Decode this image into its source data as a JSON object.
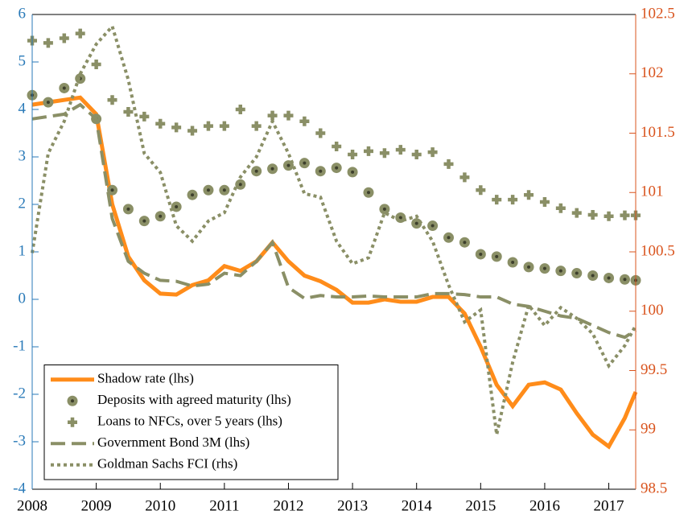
{
  "chart_data": {
    "type": "line",
    "x": [
      2008,
      2008.25,
      2008.5,
      2008.75,
      2009,
      2009.25,
      2009.5,
      2009.75,
      2010,
      2010.25,
      2010.5,
      2010.75,
      2011,
      2011.25,
      2011.5,
      2011.75,
      2012,
      2012.25,
      2012.5,
      2012.75,
      2013,
      2013.25,
      2013.5,
      2013.75,
      2014,
      2014.25,
      2014.5,
      2014.75,
      2015,
      2015.25,
      2015.5,
      2015.75,
      2016,
      2016.25,
      2016.5,
      2016.75,
      2017,
      2017.25,
      2017.42
    ],
    "xlim": [
      2008,
      2017.42
    ],
    "xticks": [
      2008,
      2009,
      2010,
      2011,
      2012,
      2013,
      2014,
      2015,
      2016,
      2017
    ],
    "ylim": [
      -4,
      6
    ],
    "yticks": [
      -4,
      -3,
      -2,
      -1,
      0,
      1,
      2,
      3,
      4,
      5,
      6
    ],
    "y2lim": [
      98.5,
      102.5
    ],
    "y2ticks": [
      98.5,
      99,
      99.5,
      100,
      100.5,
      101,
      101.5,
      102,
      102.5
    ],
    "left_axis_color": "#2a7ab8",
    "right_axis_color": "#d9541e",
    "legend": "lower left",
    "series": [
      {
        "name": "Shadow rate (lhs)",
        "color": "#ff8c1a",
        "style": "solid",
        "values": [
          4.1,
          4.15,
          4.2,
          4.25,
          3.9,
          2.0,
          0.9,
          0.4,
          0.12,
          0.1,
          0.3,
          0.4,
          0.7,
          0.6,
          0.8,
          1.2,
          0.8,
          0.5,
          0.38,
          0.2,
          -0.07,
          -0.07,
          0.0,
          -0.05,
          -0.05,
          0.05,
          0.05,
          -0.3,
          -1.0,
          -1.8,
          -2.25,
          -1.8,
          -1.75,
          -1.9,
          -2.4,
          -2.85,
          -3.1,
          -2.5,
          -1.95
        ]
      },
      {
        "name": "Deposits with agreed maturity (lhs)",
        "color": "#8a8f66",
        "style": "circle",
        "values": [
          4.3,
          4.15,
          4.45,
          4.65,
          3.8,
          2.3,
          1.9,
          1.65,
          1.75,
          1.95,
          2.2,
          2.3,
          2.3,
          2.42,
          2.7,
          2.75,
          2.82,
          2.87,
          2.7,
          2.77,
          2.68,
          2.25,
          1.9,
          1.72,
          1.6,
          1.55,
          1.3,
          1.2,
          0.95,
          0.9,
          0.78,
          0.68,
          0.65,
          0.6,
          0.55,
          0.5,
          0.45,
          0.42,
          0.4
        ]
      },
      {
        "name": "Loans to NFCs, over 5 years (lhs)",
        "color": "#8a8f66",
        "style": "plus",
        "values": [
          5.45,
          5.4,
          5.5,
          5.6,
          4.95,
          4.2,
          3.95,
          3.85,
          3.7,
          3.62,
          3.55,
          3.65,
          3.65,
          4.0,
          3.65,
          3.87,
          3.87,
          3.75,
          3.5,
          3.22,
          3.05,
          3.12,
          3.08,
          3.15,
          3.05,
          3.1,
          2.85,
          2.57,
          2.3,
          2.1,
          2.1,
          2.2,
          2.05,
          1.92,
          1.82,
          1.78,
          1.75,
          1.77,
          1.77
        ]
      },
      {
        "name": "Government Bond 3M (lhs)",
        "color": "#8a8f66",
        "style": "dashed",
        "values": [
          3.8,
          3.85,
          3.9,
          4.1,
          3.8,
          1.7,
          0.8,
          0.55,
          0.4,
          0.38,
          0.28,
          0.32,
          0.55,
          0.5,
          0.8,
          1.2,
          0.25,
          0.02,
          0.08,
          0.05,
          0.05,
          0.07,
          0.05,
          0.05,
          0.05,
          0.12,
          0.12,
          0.1,
          0.05,
          0.05,
          -0.1,
          -0.15,
          -0.25,
          -0.35,
          -0.4,
          -0.55,
          -0.7,
          -0.8,
          -0.65
        ]
      },
      {
        "name": "Goldman Sachs FCI (rhs)",
        "color": "#8a8f66",
        "style": "dotted",
        "axis": "y2",
        "values": [
          100.49,
          101.33,
          101.6,
          102.0,
          102.25,
          102.4,
          101.95,
          101.33,
          101.17,
          100.72,
          100.59,
          100.76,
          100.83,
          101.13,
          101.3,
          101.6,
          101.33,
          100.99,
          100.96,
          100.59,
          100.4,
          100.45,
          100.83,
          100.76,
          100.8,
          100.59,
          100.22,
          99.91,
          100.01,
          98.96,
          99.57,
          100.05,
          99.88,
          100.03,
          99.94,
          99.81,
          99.54,
          99.71,
          99.88
        ]
      }
    ]
  }
}
